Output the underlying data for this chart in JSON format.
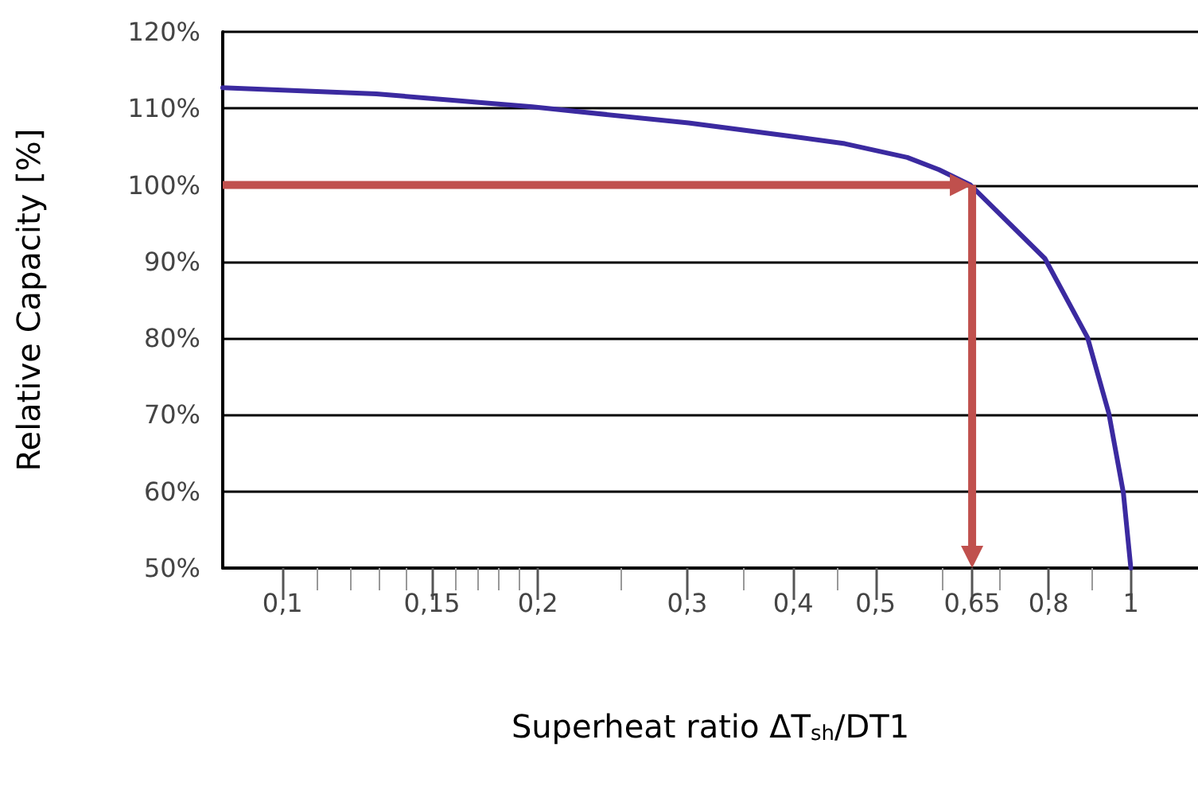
{
  "chart_data": {
    "type": "line",
    "xlabel": "Superheat ratio ΔT$_{sh}$/DT1",
    "ylabel": "Relative Capacity [%]",
    "log": "x",
    "xlim": [
      0.085,
      1.2
    ],
    "ylim": [
      50,
      120
    ],
    "xticks": [
      {
        "value": 0.1,
        "label": "0,1"
      },
      {
        "value": 0.11,
        "label": null
      },
      {
        "value": 0.12,
        "label": null
      },
      {
        "value": 0.13,
        "label": null
      },
      {
        "value": 0.14,
        "label": null
      },
      {
        "value": 0.15,
        "label": "0,15"
      },
      {
        "value": 0.16,
        "label": null
      },
      {
        "value": 0.17,
        "label": null
      },
      {
        "value": 0.18,
        "label": null
      },
      {
        "value": 0.19,
        "label": null
      },
      {
        "value": 0.2,
        "label": "0,2"
      },
      {
        "value": 0.25,
        "label": null
      },
      {
        "value": 0.3,
        "label": "0,3"
      },
      {
        "value": 0.35,
        "label": null
      },
      {
        "value": 0.4,
        "label": "0,4"
      },
      {
        "value": 0.45,
        "label": null
      },
      {
        "value": 0.5,
        "label": "0,5"
      },
      {
        "value": 0.6,
        "label": null
      },
      {
        "value": 0.65,
        "label": "0,65"
      },
      {
        "value": 0.7,
        "label": null
      },
      {
        "value": 0.8,
        "label": "0,8"
      },
      {
        "value": 0.9,
        "label": null
      },
      {
        "value": 1,
        "label": "1"
      }
    ],
    "yticks": [
      {
        "value": 50,
        "label": "50%"
      },
      {
        "value": 60,
        "label": "60%"
      },
      {
        "value": 70,
        "label": "70%"
      },
      {
        "value": 80,
        "label": "80%"
      },
      {
        "value": 90,
        "label": "90%"
      },
      {
        "value": 100,
        "label": "100%"
      },
      {
        "value": 110,
        "label": "110%"
      },
      {
        "value": 120,
        "label": "120%"
      }
    ],
    "grid": "y",
    "marker": "none",
    "line_style": "solid",
    "x": [
      0.085,
      0.129,
      0.197,
      0.301,
      0.402,
      0.46,
      0.545,
      0.594,
      0.647,
      0.792,
      0.889,
      0.942,
      0.98,
      1.0
    ],
    "series": [
      {
        "color": "#3b2aa0",
        "values": [
          112.7,
          111.9,
          110.2,
          108.1,
          106.3,
          105.4,
          103.6,
          102.0,
          100,
          90.4,
          80.1,
          70.2,
          59.8,
          50
        ]
      }
    ],
    "ref_lines": [
      {
        "axis": "y",
        "value": 100,
        "color": "#c0504d"
      },
      {
        "axis": "x",
        "value": 0.65,
        "color": "#c0504d"
      }
    ]
  }
}
